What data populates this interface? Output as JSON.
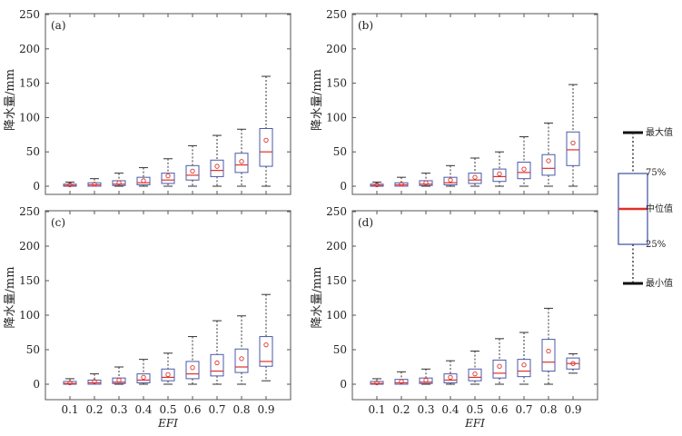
{
  "chart_data": [
    {
      "type": "box",
      "panel_label": "(a)",
      "ylabel": "降水量/mm",
      "xlabel": "",
      "ylim": [
        0,
        250
      ],
      "yticks": [
        0,
        50,
        100,
        150,
        200,
        250
      ],
      "categories": [
        "0.1",
        "0.2",
        "0.3",
        "0.4",
        "0.5",
        "0.6",
        "0.7",
        "0.8",
        "0.9"
      ],
      "boxes": [
        {
          "min": 0,
          "q1": 0,
          "median": 1,
          "q3": 3,
          "max": 6,
          "mean": 2
        },
        {
          "min": 0,
          "q1": 0,
          "median": 2,
          "q3": 5,
          "max": 11,
          "mean": 3
        },
        {
          "min": 0,
          "q1": 1,
          "median": 3,
          "q3": 8,
          "max": 19,
          "mean": 5
        },
        {
          "min": 0,
          "q1": 2,
          "median": 5,
          "q3": 13,
          "max": 27,
          "mean": 8
        },
        {
          "min": 0,
          "q1": 4,
          "median": 9,
          "q3": 19,
          "max": 40,
          "mean": 15
        },
        {
          "min": 0,
          "q1": 9,
          "median": 16,
          "q3": 30,
          "max": 59,
          "mean": 22
        },
        {
          "min": 0,
          "q1": 14,
          "median": 23,
          "q3": 38,
          "max": 74,
          "mean": 29
        },
        {
          "min": 0,
          "q1": 20,
          "median": 31,
          "q3": 48,
          "max": 83,
          "mean": 36
        },
        {
          "min": 0,
          "q1": 29,
          "median": 50,
          "q3": 84,
          "max": 160,
          "mean": 67
        }
      ]
    },
    {
      "type": "box",
      "panel_label": "(b)",
      "ylabel": "降水量/mm",
      "xlabel": "",
      "ylim": [
        0,
        250
      ],
      "yticks": [
        0,
        50,
        100,
        150,
        200,
        250
      ],
      "categories": [
        "0.1",
        "0.2",
        "0.3",
        "0.4",
        "0.5",
        "0.6",
        "0.7",
        "0.8",
        "0.9"
      ],
      "boxes": [
        {
          "min": 0,
          "q1": 0,
          "median": 1,
          "q3": 3,
          "max": 6,
          "mean": 2
        },
        {
          "min": 0,
          "q1": 0,
          "median": 2,
          "q3": 5,
          "max": 13,
          "mean": 3
        },
        {
          "min": 0,
          "q1": 1,
          "median": 3,
          "q3": 8,
          "max": 19,
          "mean": 5
        },
        {
          "min": 0,
          "q1": 2,
          "median": 5,
          "q3": 13,
          "max": 30,
          "mean": 9
        },
        {
          "min": 0,
          "q1": 4,
          "median": 9,
          "q3": 19,
          "max": 41,
          "mean": 13
        },
        {
          "min": 0,
          "q1": 7,
          "median": 14,
          "q3": 25,
          "max": 50,
          "mean": 18
        },
        {
          "min": 0,
          "q1": 11,
          "median": 20,
          "q3": 35,
          "max": 72,
          "mean": 25
        },
        {
          "min": 0,
          "q1": 16,
          "median": 26,
          "q3": 46,
          "max": 92,
          "mean": 37
        },
        {
          "min": 0,
          "q1": 30,
          "median": 53,
          "q3": 79,
          "max": 148,
          "mean": 63
        }
      ]
    },
    {
      "type": "box",
      "panel_label": "(c)",
      "ylabel": "降水量/mm",
      "xlabel": "EFI",
      "ylim": [
        0,
        250
      ],
      "yticks": [
        0,
        50,
        100,
        150,
        200,
        250
      ],
      "categories": [
        "0.1",
        "0.2",
        "0.3",
        "0.4",
        "0.5",
        "0.6",
        "0.7",
        "0.8",
        "0.9"
      ],
      "boxes": [
        {
          "min": 0,
          "q1": 0,
          "median": 1,
          "q3": 4,
          "max": 8,
          "mean": 2
        },
        {
          "min": 0,
          "q1": 0,
          "median": 2,
          "q3": 6,
          "max": 15,
          "mean": 4
        },
        {
          "min": 0,
          "q1": 1,
          "median": 3,
          "q3": 9,
          "max": 25,
          "mean": 6
        },
        {
          "min": 0,
          "q1": 2,
          "median": 6,
          "q3": 15,
          "max": 36,
          "mean": 10
        },
        {
          "min": 0,
          "q1": 5,
          "median": 10,
          "q3": 22,
          "max": 45,
          "mean": 14
        },
        {
          "min": 0,
          "q1": 8,
          "median": 15,
          "q3": 33,
          "max": 69,
          "mean": 24
        },
        {
          "min": 0,
          "q1": 12,
          "median": 19,
          "q3": 43,
          "max": 92,
          "mean": 31
        },
        {
          "min": 0,
          "q1": 17,
          "median": 25,
          "q3": 51,
          "max": 99,
          "mean": 37
        },
        {
          "min": 5,
          "q1": 26,
          "median": 33,
          "q3": 69,
          "max": 130,
          "mean": 57
        }
      ]
    },
    {
      "type": "box",
      "panel_label": "(d)",
      "ylabel": "降水量/mm",
      "xlabel": "EFI",
      "ylim": [
        0,
        250
      ],
      "yticks": [
        0,
        50,
        100,
        150,
        200,
        250
      ],
      "categories": [
        "0.1",
        "0.2",
        "0.3",
        "0.4",
        "0.5",
        "0.6",
        "0.7",
        "0.8",
        "0.9"
      ],
      "boxes": [
        {
          "min": 0,
          "q1": 0,
          "median": 1,
          "q3": 4,
          "max": 8,
          "mean": 2
        },
        {
          "min": 0,
          "q1": 0,
          "median": 2,
          "q3": 7,
          "max": 18,
          "mean": 4
        },
        {
          "min": 0,
          "q1": 1,
          "median": 3,
          "q3": 9,
          "max": 22,
          "mean": 6
        },
        {
          "min": 0,
          "q1": 2,
          "median": 6,
          "q3": 15,
          "max": 34,
          "mean": 10
        },
        {
          "min": 0,
          "q1": 5,
          "median": 10,
          "q3": 22,
          "max": 48,
          "mean": 15
        },
        {
          "min": 0,
          "q1": 9,
          "median": 16,
          "q3": 35,
          "max": 66,
          "mean": 26
        },
        {
          "min": 0,
          "q1": 11,
          "median": 19,
          "q3": 36,
          "max": 75,
          "mean": 28
        },
        {
          "min": 0,
          "q1": 19,
          "median": 32,
          "q3": 65,
          "max": 110,
          "mean": 48
        },
        {
          "min": 16,
          "q1": 22,
          "median": 30,
          "q3": 38,
          "max": 44,
          "mean": 30
        }
      ]
    }
  ],
  "legend": {
    "max_label": "最大值",
    "q3_label": "75%",
    "median_label": "中位值",
    "q1_label": "25%",
    "min_label": "最小值"
  },
  "colors": {
    "box": "#4a5aa8",
    "median": "#e0302a",
    "mean": "#e0302a",
    "whisker": "#333333",
    "axis": "#555555"
  }
}
